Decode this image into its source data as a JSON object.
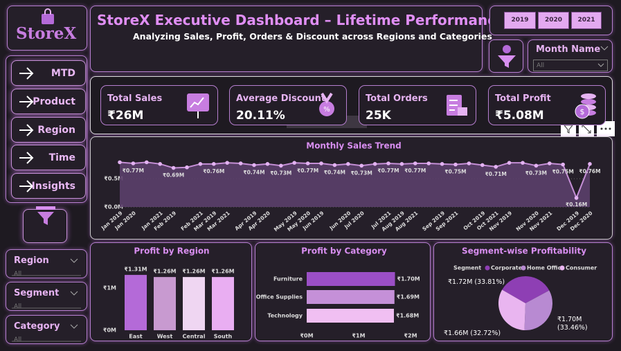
{
  "logo": "StoreX",
  "header": {
    "title": "StoreX Executive Dashboard – Lifetime Performance",
    "subtitle": "Analyzing Sales, Profit, Orders & Discount across Regions and Categories"
  },
  "years": [
    "2019",
    "2020",
    "2021"
  ],
  "month_filter": {
    "label": "Month Name",
    "value": "All"
  },
  "nav": [
    "MTD",
    "Product",
    "Region",
    "Time",
    "Insights"
  ],
  "kpis": [
    {
      "label": "Total Sales",
      "value": "₹26M"
    },
    {
      "label": "Average Discount",
      "value": "20.11%"
    },
    {
      "label": "Total Orders",
      "value": "25K"
    },
    {
      "label": "Total Profit",
      "value": "₹5.08M"
    }
  ],
  "overlay_label": "Rectangle",
  "filters": [
    {
      "label": "Region",
      "value": "All"
    },
    {
      "label": "Segment",
      "value": "All"
    },
    {
      "label": "Category",
      "value": "All"
    }
  ],
  "chart_data": [
    {
      "type": "line",
      "title": "Monthly Sales Trend",
      "color": "#c58fd6",
      "categories": [
        "Jan 2019",
        "Jan 2020",
        null,
        "Jan 2021",
        "Feb 2019",
        null,
        "Feb 2021",
        "Mar 2019",
        "Mar 2021",
        null,
        "Apr 2019",
        "Apr 2020",
        null,
        "May 2019",
        "May 2020",
        "Jun 2019",
        null,
        "Jun 2020",
        "Jul 2020",
        null,
        "Jul 2021",
        "Aug 2019",
        "Aug 2021",
        null,
        "Sep 2019",
        "Sep 2021",
        null,
        "Oct 2019",
        "Oct 2021",
        "Nov 2019",
        null,
        "Nov 2020",
        "Nov 2021",
        null,
        "Dec 2019",
        "Dec 2020"
      ],
      "values": [
        0.79,
        0.77,
        0.79,
        0.76,
        0.69,
        0.7,
        0.76,
        0.76,
        0.78,
        0.77,
        0.74,
        0.76,
        0.73,
        0.78,
        0.77,
        0.77,
        0.74,
        0.76,
        0.73,
        0.76,
        0.77,
        0.76,
        0.77,
        0.77,
        0.76,
        0.75,
        0.77,
        0.74,
        0.71,
        0.78,
        0.78,
        0.73,
        0.77,
        0.75,
        0.16,
        0.76
      ],
      "value_labels": [
        null,
        "₹0.77M",
        null,
        null,
        "₹0.69M",
        null,
        null,
        "₹0.76M",
        null,
        null,
        "₹0.74M",
        null,
        "₹0.73M",
        null,
        "₹0.77M",
        null,
        "₹0.74M",
        null,
        "₹0.73M",
        null,
        "₹0.77M",
        null,
        "₹0.77M",
        null,
        null,
        "₹0.75M",
        null,
        null,
        "₹0.71M",
        null,
        null,
        "₹0.73M",
        null,
        "₹0.75M",
        "₹0.16M",
        "₹0.76M"
      ],
      "ylim": [
        0,
        1.1
      ],
      "yticks": [
        {
          "value": 0,
          "label": "₹0.0M"
        },
        {
          "value": 0.5,
          "label": "₹0.5M"
        }
      ],
      "grid": true
    },
    {
      "type": "bar",
      "title": "Profit by Region",
      "categories": [
        "East",
        "West",
        "Central",
        "South"
      ],
      "values": [
        1.31,
        1.26,
        1.26,
        1.26
      ],
      "value_labels": [
        "₹1.31M",
        "₹1.26M",
        "₹1.26M",
        "₹1.26M"
      ],
      "colors": [
        "#b46ad8",
        "#c89ad0",
        "#efd6f2",
        "#e9aef2"
      ],
      "ylim": [
        0,
        1.5
      ],
      "yticks": [
        {
          "value": 0,
          "label": "₹0M"
        },
        {
          "value": 1,
          "label": "₹1M"
        }
      ]
    },
    {
      "type": "hbar",
      "title": "Profit by Category",
      "categories": [
        "Furniture",
        "Office Supplies",
        "Technology"
      ],
      "values": [
        1.7,
        1.69,
        1.68
      ],
      "value_labels": [
        "₹1.70M",
        "₹1.69M",
        "₹1.68M"
      ],
      "colors": [
        "#9b4fc6",
        "#c590d8",
        "#f0bff2"
      ],
      "xlim": [
        0,
        2
      ],
      "xticks": [
        {
          "value": 0,
          "label": "₹0M"
        },
        {
          "value": 1,
          "label": "₹1M"
        },
        {
          "value": 2,
          "label": "₹2M"
        }
      ]
    },
    {
      "type": "pie",
      "title": "Segment-wise Profitability",
      "legend_title": "Segment",
      "categories": [
        "Corporate",
        "Home Office",
        "Consumer"
      ],
      "values": [
        33.81,
        33.46,
        32.72
      ],
      "value_labels": [
        "₹1.72M (33.81%)",
        "₹1.70M (33.46%)",
        "₹1.66M (32.72%)"
      ],
      "colors": [
        "#8e3fb4",
        "#b88ad2",
        "#e9b5f0"
      ]
    }
  ]
}
